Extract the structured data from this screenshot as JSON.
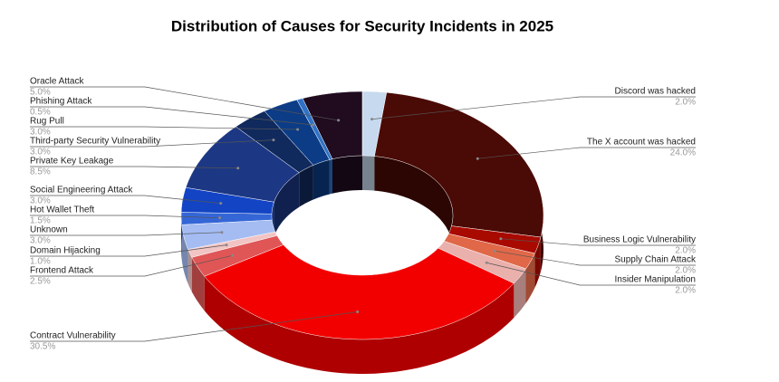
{
  "chart_data": {
    "type": "pie",
    "style": "3d-donut",
    "title": "Distribution of Causes for Security Incidents in 2025",
    "categories": [
      "Discord was hacked",
      "The X account was hacked",
      "Business Logic Vulnerability",
      "Supply Chain Attack",
      "Insider Manipulation",
      "Contract Vulnerability",
      "Frontend Attack",
      "Domain Hijacking",
      "Unknown",
      "Hot Wallet Theft",
      "Social Engineering Attack",
      "Private Key Leakage",
      "Third-party Security Vulnerability",
      "Rug Pull",
      "Phishing Attack",
      "Oracle Attack"
    ],
    "values": [
      2.0,
      24.0,
      2.0,
      2.0,
      2.0,
      30.5,
      2.5,
      1.0,
      3.0,
      1.5,
      3.0,
      8.5,
      3.0,
      3.0,
      0.5,
      5.0
    ],
    "value_labels": [
      "2.0%",
      "24.0%",
      "2.0%",
      "2.0%",
      "2.0%",
      "30.5%",
      "2.5%",
      "1.0%",
      "3.0%",
      "1.5%",
      "3.0%",
      "8.5%",
      "3.0%",
      "3.0%",
      "0.5%",
      "5.0%"
    ],
    "colors": [
      "#c6d9ef",
      "#4a0a05",
      "#a80a00",
      "#e06848",
      "#eab0ac",
      "#f20000",
      "#e05656",
      "#f2c4c4",
      "#a4bcf2",
      "#3466d6",
      "#1244c4",
      "#1c3784",
      "#102a5e",
      "#0c3c86",
      "#2f72c6",
      "#200b1f"
    ]
  }
}
